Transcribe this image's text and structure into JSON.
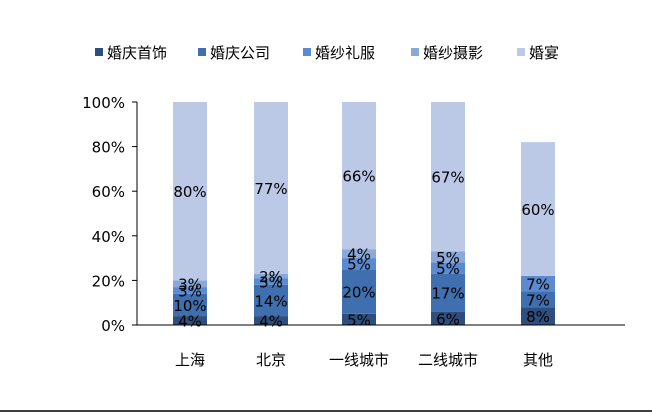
{
  "chart_data": {
    "type": "bar",
    "stacked": true,
    "percent": true,
    "categories": [
      "上海",
      "北京",
      "一线城市",
      "二线城市",
      "其他"
    ],
    "series": [
      {
        "name": "婚庆首饰",
        "color": "#2e4f7e",
        "values": [
          4,
          4,
          5,
          6,
          8
        ],
        "labels": [
          "4%",
          "4%",
          "5%",
          "6%",
          "8%"
        ]
      },
      {
        "name": "婚庆公司",
        "color": "#3f6fae",
        "values": [
          10,
          14,
          20,
          17,
          7
        ],
        "labels": [
          "10%",
          "14%",
          "20%",
          "17%",
          "7%"
        ]
      },
      {
        "name": "婚纱礼服",
        "color": "#5b8ad0",
        "values": [
          3,
          3,
          5,
          5,
          7
        ],
        "labels": [
          "3%",
          "3%",
          "5%",
          "5%",
          "7%"
        ]
      },
      {
        "name": "婚纱摄影",
        "color": "#8aa9d9",
        "values": [
          3,
          2,
          4,
          5,
          0
        ],
        "labels": [
          "3%",
          "2%",
          "4%",
          "5%",
          ""
        ]
      },
      {
        "name": "婚宴",
        "color": "#bcc9e6",
        "values": [
          80,
          77,
          66,
          67,
          60
        ],
        "labels": [
          "80%",
          "77%",
          "66%",
          "67%",
          "60%"
        ]
      }
    ],
    "ylim": [
      0,
      100
    ],
    "yticks": [
      "0%",
      "20%",
      "40%",
      "60%",
      "80%",
      "100%"
    ],
    "legend_position": "top",
    "grid": false
  }
}
